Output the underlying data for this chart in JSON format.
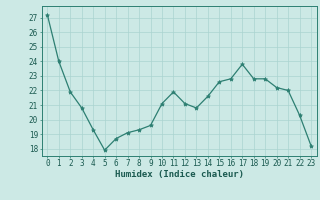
{
  "x": [
    0,
    1,
    2,
    3,
    4,
    5,
    6,
    7,
    8,
    9,
    10,
    11,
    12,
    13,
    14,
    15,
    16,
    17,
    18,
    19,
    20,
    21,
    22,
    23
  ],
  "y": [
    27.2,
    24.0,
    21.9,
    20.8,
    19.3,
    17.9,
    18.7,
    19.1,
    19.3,
    19.6,
    21.1,
    21.9,
    21.1,
    20.8,
    21.6,
    22.6,
    22.8,
    23.8,
    22.8,
    22.8,
    22.2,
    22.0,
    20.3,
    18.2
  ],
  "line_color": "#2d7f72",
  "marker": "*",
  "bg_color": "#cce9e5",
  "grid_color": "#aad4d0",
  "axis_color": "#2d7f72",
  "xlabel": "Humidex (Indice chaleur)",
  "xlim": [
    -0.5,
    23.5
  ],
  "ylim": [
    17.5,
    27.8
  ],
  "yticks": [
    18,
    19,
    20,
    21,
    22,
    23,
    24,
    25,
    26,
    27
  ],
  "xticks": [
    0,
    1,
    2,
    3,
    4,
    5,
    6,
    7,
    8,
    9,
    10,
    11,
    12,
    13,
    14,
    15,
    16,
    17,
    18,
    19,
    20,
    21,
    22,
    23
  ],
  "font_color": "#1a5a50",
  "tick_fontsize": 5.5,
  "xlabel_fontsize": 6.5
}
